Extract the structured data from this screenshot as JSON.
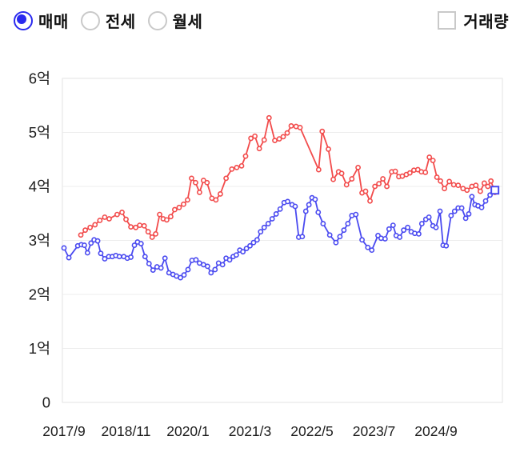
{
  "controls": {
    "radio_group": {
      "options": [
        {
          "label": "매매",
          "selected": true
        },
        {
          "label": "전세",
          "selected": false
        },
        {
          "label": "월세",
          "selected": false
        }
      ]
    },
    "volume_checkbox": {
      "label": "거래량",
      "checked": false
    }
  },
  "colors": {
    "radio_selected": "#2a2aef",
    "control_border": "#c9c9c9",
    "gridline": "#ededed",
    "plot_border": "#e9e9e9",
    "axis_text": "#1c1c1c",
    "red_series": "#f24b4b",
    "blue_series": "#4a4af0"
  },
  "chart_data": {
    "type": "line",
    "unit": "억 (KRW 100M)",
    "grid": true,
    "x_axis": {
      "start_month": "2017/9",
      "tick_labels": [
        "2017/9",
        "2018/11",
        "2020/1",
        "2021/3",
        "2022/5",
        "2023/7",
        "2024/9"
      ],
      "tick_month_index": [
        0,
        14,
        28,
        42,
        56,
        70,
        84
      ]
    },
    "y_axis": {
      "tick_labels": [
        "0",
        "1억",
        "2억",
        "3억",
        "4억",
        "5억",
        "6억"
      ],
      "tick_values": [
        0,
        1,
        2,
        3,
        4,
        5,
        6
      ],
      "range": [
        0,
        6
      ]
    },
    "series": [
      {
        "name": "red-line",
        "color": "#f24b4b",
        "marker": "circle",
        "points": [
          [
            3.8,
            3.1
          ],
          [
            4.8,
            3.19
          ],
          [
            5.9,
            3.24
          ],
          [
            7.0,
            3.29
          ],
          [
            8.1,
            3.37
          ],
          [
            9.2,
            3.43
          ],
          [
            10.2,
            3.4
          ],
          [
            12.0,
            3.48
          ],
          [
            13.1,
            3.52
          ],
          [
            14.0,
            3.39
          ],
          [
            15.1,
            3.25
          ],
          [
            16.2,
            3.24
          ],
          [
            17.1,
            3.28
          ],
          [
            18.1,
            3.27
          ],
          [
            19.0,
            3.16
          ],
          [
            19.9,
            3.06
          ],
          [
            20.7,
            3.12
          ],
          [
            21.6,
            3.48
          ],
          [
            22.4,
            3.4
          ],
          [
            23.2,
            3.38
          ],
          [
            24.1,
            3.44
          ],
          [
            25.0,
            3.57
          ],
          [
            26.0,
            3.61
          ],
          [
            27.0,
            3.67
          ],
          [
            27.9,
            3.75
          ],
          [
            28.8,
            4.15
          ],
          [
            29.7,
            4.07
          ],
          [
            30.6,
            3.89
          ],
          [
            31.5,
            4.11
          ],
          [
            32.3,
            4.07
          ],
          [
            33.4,
            3.78
          ],
          [
            34.3,
            3.75
          ],
          [
            35.3,
            3.86
          ],
          [
            36.6,
            4.15
          ],
          [
            37.9,
            4.32
          ],
          [
            39.0,
            4.35
          ],
          [
            40.1,
            4.38
          ],
          [
            41.0,
            4.56
          ],
          [
            42.2,
            4.89
          ],
          [
            43.1,
            4.93
          ],
          [
            44.1,
            4.7
          ],
          [
            45.2,
            4.86
          ],
          [
            46.3,
            5.27
          ],
          [
            47.6,
            4.85
          ],
          [
            48.6,
            4.88
          ],
          [
            49.5,
            4.92
          ],
          [
            50.4,
            4.99
          ],
          [
            51.3,
            5.12
          ],
          [
            52.4,
            5.11
          ],
          [
            53.3,
            5.09
          ],
          [
            57.5,
            4.31
          ],
          [
            58.3,
            5.02
          ],
          [
            59.7,
            4.69
          ],
          [
            60.8,
            4.13
          ],
          [
            62.0,
            4.27
          ],
          [
            62.7,
            4.24
          ],
          [
            63.8,
            4.03
          ],
          [
            65.0,
            4.14
          ],
          [
            66.4,
            4.35
          ],
          [
            67.3,
            3.88
          ],
          [
            68.1,
            3.91
          ],
          [
            69.1,
            3.73
          ],
          [
            70.2,
            4.0
          ],
          [
            71.1,
            4.05
          ],
          [
            72.0,
            4.14
          ],
          [
            72.9,
            4.0
          ],
          [
            74.0,
            4.27
          ],
          [
            74.8,
            4.28
          ],
          [
            75.6,
            4.18
          ],
          [
            76.4,
            4.19
          ],
          [
            77.3,
            4.22
          ],
          [
            78.1,
            4.25
          ],
          [
            79.0,
            4.3
          ],
          [
            79.9,
            4.31
          ],
          [
            80.7,
            4.27
          ],
          [
            81.6,
            4.26
          ],
          [
            82.5,
            4.54
          ],
          [
            83.3,
            4.48
          ],
          [
            84.2,
            4.17
          ],
          [
            85.0,
            4.1
          ],
          [
            85.9,
            3.96
          ],
          [
            87.0,
            4.09
          ],
          [
            88.0,
            4.03
          ],
          [
            89.0,
            4.02
          ],
          [
            90.1,
            3.96
          ],
          [
            91.0,
            3.93
          ],
          [
            92.1,
            4.0
          ],
          [
            93.0,
            4.02
          ],
          [
            94.0,
            3.91
          ],
          [
            94.9,
            4.06
          ],
          [
            95.7,
            4.0
          ],
          [
            96.4,
            4.1
          ],
          [
            97.3,
            3.89
          ]
        ]
      },
      {
        "name": "blue-line",
        "color": "#4a4af0",
        "marker": "circle",
        "highlight_last_point": true,
        "points": [
          [
            0.0,
            2.86
          ],
          [
            1.1,
            2.68
          ],
          [
            3.1,
            2.9
          ],
          [
            3.9,
            2.92
          ],
          [
            4.6,
            2.91
          ],
          [
            5.3,
            2.77
          ],
          [
            6.1,
            2.95
          ],
          [
            6.8,
            3.01
          ],
          [
            7.6,
            2.99
          ],
          [
            8.3,
            2.76
          ],
          [
            9.2,
            2.66
          ],
          [
            10.1,
            2.7
          ],
          [
            10.9,
            2.7
          ],
          [
            11.7,
            2.72
          ],
          [
            12.5,
            2.7
          ],
          [
            13.5,
            2.7
          ],
          [
            14.3,
            2.67
          ],
          [
            15.1,
            2.69
          ],
          [
            15.9,
            2.91
          ],
          [
            16.6,
            2.97
          ],
          [
            17.4,
            2.94
          ],
          [
            18.3,
            2.7
          ],
          [
            19.2,
            2.57
          ],
          [
            20.1,
            2.45
          ],
          [
            21.0,
            2.51
          ],
          [
            21.9,
            2.49
          ],
          [
            22.8,
            2.67
          ],
          [
            23.7,
            2.4
          ],
          [
            24.6,
            2.37
          ],
          [
            25.4,
            2.34
          ],
          [
            26.3,
            2.31
          ],
          [
            27.1,
            2.36
          ],
          [
            28.0,
            2.46
          ],
          [
            28.9,
            2.63
          ],
          [
            29.8,
            2.64
          ],
          [
            30.6,
            2.58
          ],
          [
            31.5,
            2.55
          ],
          [
            32.4,
            2.52
          ],
          [
            33.2,
            2.4
          ],
          [
            34.1,
            2.46
          ],
          [
            34.9,
            2.58
          ],
          [
            35.8,
            2.55
          ],
          [
            36.6,
            2.67
          ],
          [
            37.4,
            2.64
          ],
          [
            38.2,
            2.7
          ],
          [
            38.9,
            2.73
          ],
          [
            39.7,
            2.82
          ],
          [
            40.4,
            2.79
          ],
          [
            41.2,
            2.85
          ],
          [
            42.0,
            2.9
          ],
          [
            42.8,
            2.96
          ],
          [
            43.6,
            3.01
          ],
          [
            44.4,
            3.16
          ],
          [
            45.2,
            3.24
          ],
          [
            46.1,
            3.31
          ],
          [
            47.0,
            3.4
          ],
          [
            47.9,
            3.49
          ],
          [
            48.8,
            3.58
          ],
          [
            49.7,
            3.7
          ],
          [
            50.5,
            3.72
          ],
          [
            51.5,
            3.66
          ],
          [
            52.2,
            3.63
          ],
          [
            53.0,
            3.06
          ],
          [
            53.8,
            3.07
          ],
          [
            54.6,
            3.54
          ],
          [
            55.3,
            3.66
          ],
          [
            56.0,
            3.79
          ],
          [
            56.7,
            3.76
          ],
          [
            57.4,
            3.52
          ],
          [
            58.5,
            3.31
          ],
          [
            60.0,
            3.1
          ],
          [
            61.4,
            2.96
          ],
          [
            62.3,
            3.07
          ],
          [
            63.2,
            3.19
          ],
          [
            64.1,
            3.31
          ],
          [
            65.0,
            3.46
          ],
          [
            65.9,
            3.48
          ],
          [
            67.3,
            3.01
          ],
          [
            68.6,
            2.87
          ],
          [
            69.5,
            2.82
          ],
          [
            70.9,
            3.09
          ],
          [
            71.6,
            3.04
          ],
          [
            72.5,
            3.03
          ],
          [
            73.4,
            3.21
          ],
          [
            74.3,
            3.28
          ],
          [
            75.0,
            3.09
          ],
          [
            75.8,
            3.06
          ],
          [
            76.7,
            3.19
          ],
          [
            77.6,
            3.24
          ],
          [
            78.4,
            3.16
          ],
          [
            79.2,
            3.13
          ],
          [
            80.1,
            3.12
          ],
          [
            80.8,
            3.31
          ],
          [
            81.7,
            3.39
          ],
          [
            82.4,
            3.43
          ],
          [
            83.3,
            3.27
          ],
          [
            84.0,
            3.24
          ],
          [
            84.9,
            3.54
          ],
          [
            85.6,
            2.91
          ],
          [
            86.3,
            2.9
          ],
          [
            87.4,
            3.46
          ],
          [
            88.2,
            3.54
          ],
          [
            89.0,
            3.6
          ],
          [
            89.8,
            3.6
          ],
          [
            90.7,
            3.41
          ],
          [
            91.4,
            3.49
          ],
          [
            92.1,
            3.81
          ],
          [
            92.8,
            3.66
          ],
          [
            93.5,
            3.64
          ],
          [
            94.3,
            3.61
          ],
          [
            95.2,
            3.73
          ],
          [
            96.2,
            3.84
          ],
          [
            97.3,
            3.93
          ]
        ]
      }
    ]
  }
}
